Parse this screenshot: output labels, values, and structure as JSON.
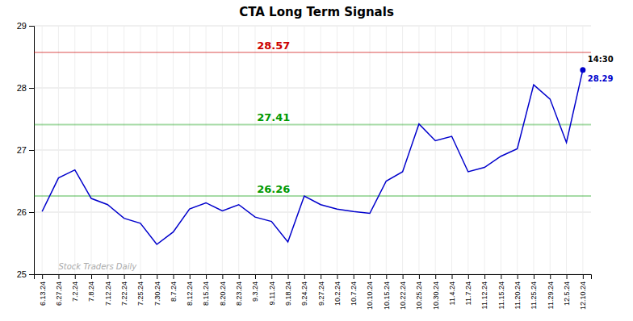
{
  "chart_data": {
    "type": "line",
    "title": "CTA Long Term Signals",
    "categories": [
      "6.13.24",
      "6.27.24",
      "7.2.24",
      "7.8.24",
      "7.12.24",
      "7.22.24",
      "7.25.24",
      "7.30.24",
      "8.7.24",
      "8.12.24",
      "8.15.24",
      "8.20.24",
      "8.23.24",
      "9.3.24",
      "9.11.24",
      "9.18.24",
      "9.24.24",
      "9.27.24",
      "10.2.24",
      "10.7.24",
      "10.10.24",
      "10.15.24",
      "10.22.24",
      "10.25.24",
      "10.30.24",
      "11.4.24",
      "11.7.24",
      "11.12.24",
      "11.15.24",
      "11.20.24",
      "11.25.24",
      "11.29.24",
      "12.5.24",
      "12.10.24"
    ],
    "values": [
      26.01,
      26.55,
      26.68,
      26.22,
      26.12,
      25.9,
      25.82,
      25.48,
      25.68,
      26.05,
      26.15,
      26.02,
      26.12,
      25.92,
      25.85,
      25.52,
      26.26,
      26.12,
      26.05,
      26.01,
      25.98,
      26.5,
      26.65,
      27.42,
      27.15,
      27.22,
      26.65,
      26.72,
      26.9,
      27.02,
      28.05,
      27.82,
      27.12,
      28.29
    ],
    "color": "#0000cc",
    "reference_lines": [
      {
        "value": 28.57,
        "color": "#cc0000"
      },
      {
        "value": 27.41,
        "color": "#009900"
      },
      {
        "value": 26.26,
        "color": "#009900"
      }
    ],
    "annotations": [
      {
        "text": "14:30",
        "x": "12.10.24"
      }
    ],
    "watermark": "Stock Traders Daily",
    "ylim": [
      25.0,
      29.0
    ],
    "yticks": [
      25,
      26,
      27,
      28,
      29
    ],
    "grid": true
  }
}
